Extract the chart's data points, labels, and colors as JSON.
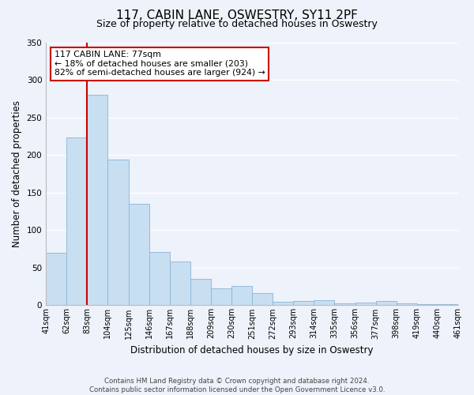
{
  "title": "117, CABIN LANE, OSWESTRY, SY11 2PF",
  "subtitle": "Size of property relative to detached houses in Oswestry",
  "xlabel": "Distribution of detached houses by size in Oswestry",
  "ylabel": "Number of detached properties",
  "categories": [
    "41sqm",
    "62sqm",
    "83sqm",
    "104sqm",
    "125sqm",
    "146sqm",
    "167sqm",
    "188sqm",
    "209sqm",
    "230sqm",
    "251sqm",
    "272sqm",
    "293sqm",
    "314sqm",
    "335sqm",
    "356sqm",
    "377sqm",
    "398sqm",
    "419sqm",
    "440sqm",
    "461sqm"
  ],
  "values": [
    70,
    224,
    280,
    194,
    135,
    71,
    58,
    35,
    23,
    26,
    16,
    5,
    6,
    7,
    3,
    4,
    6,
    2,
    1,
    1
  ],
  "bar_color": "#c8dff2",
  "bar_edge_color": "#8ab4d4",
  "background_color": "#eef2fa",
  "grid_color": "#ffffff",
  "ylim": [
    0,
    350
  ],
  "yticks": [
    0,
    50,
    100,
    150,
    200,
    250,
    300,
    350
  ],
  "property_line_label": "117 CABIN LANE: 77sqm",
  "annotation_line1": "← 18% of detached houses are smaller (203)",
  "annotation_line2": "82% of semi-detached houses are larger (924) →",
  "annotation_box_color": "#ffffff",
  "annotation_box_edge": "#cc0000",
  "vline_color": "#cc0000",
  "footer_line1": "Contains HM Land Registry data © Crown copyright and database right 2024.",
  "footer_line2": "Contains public sector information licensed under the Open Government Licence v3.0.",
  "title_fontsize": 11,
  "subtitle_fontsize": 9,
  "tick_fontsize": 7,
  "ylabel_fontsize": 8.5,
  "xlabel_fontsize": 8.5,
  "annotation_fontsize": 7.8
}
